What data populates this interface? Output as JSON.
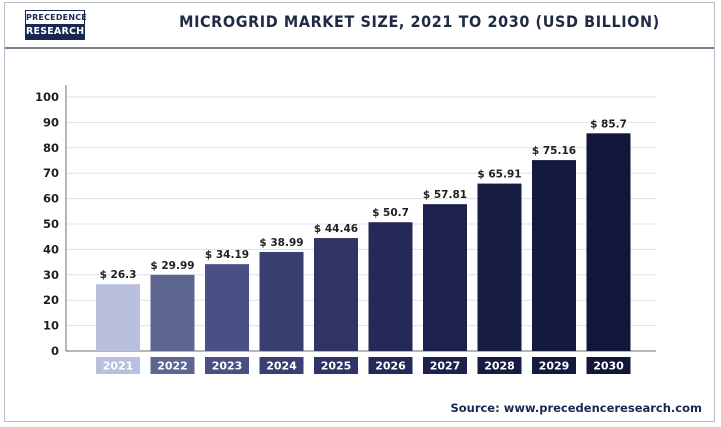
{
  "brand": {
    "logo_top": "PRECEDENCE",
    "logo_bottom": "RESEARCH"
  },
  "header": {
    "title": "MICROGRID MARKET SIZE, 2021 TO 2030 (USD BILLION)"
  },
  "footer": {
    "source": "Source: www.precedenceresearch.com"
  },
  "chart_data": {
    "type": "bar",
    "title": "MICROGRID MARKET SIZE, 2021 TO 2030 (USD BILLION)",
    "xlabel": "",
    "ylabel": "",
    "categories": [
      "2021",
      "2022",
      "2023",
      "2024",
      "2025",
      "2026",
      "2027",
      "2028",
      "2029",
      "2030"
    ],
    "values": [
      26.3,
      29.99,
      34.19,
      38.99,
      44.46,
      50.7,
      57.81,
      65.91,
      75.16,
      85.7
    ],
    "data_labels": [
      "$ 26.3",
      "$ 29.99",
      "$ 34.19",
      "$ 38.99",
      "$ 44.46",
      "$ 50.7",
      "$ 57.81",
      "$ 65.91",
      "$ 75.16",
      "$ 85.7"
    ],
    "ylim": [
      0,
      100
    ],
    "yticks": [
      0,
      10,
      20,
      30,
      40,
      50,
      60,
      70,
      80,
      90,
      100
    ],
    "grid": true,
    "legend": "none",
    "bar_colors": [
      "#b8c0dd",
      "#5d6591",
      "#4a5083",
      "#3a3f72",
      "#2f3366",
      "#24295a",
      "#1c214d",
      "#171c43",
      "#141a3e",
      "#11163a"
    ]
  }
}
